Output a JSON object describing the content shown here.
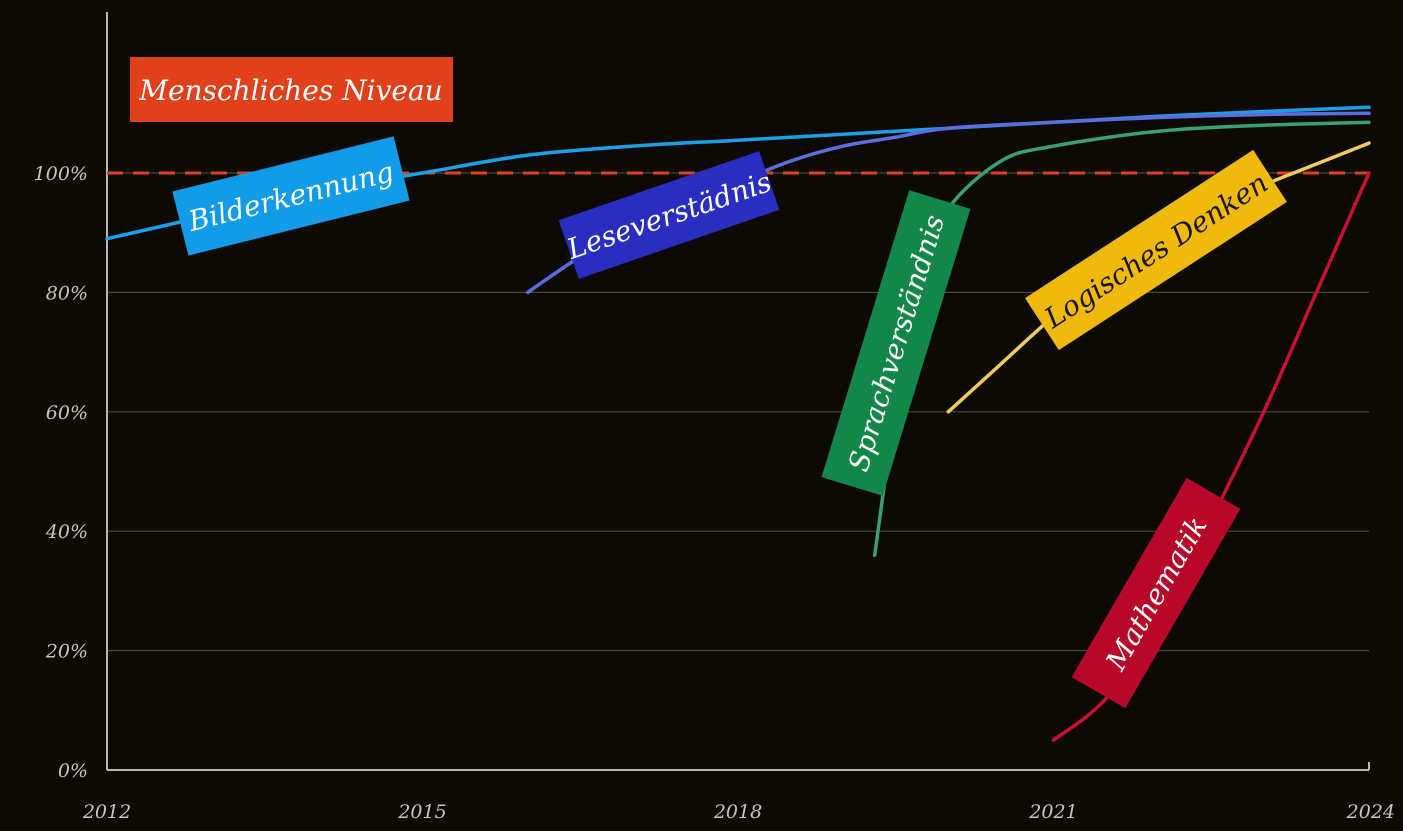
{
  "chart_data": {
    "type": "line",
    "title": "",
    "xlabel": "",
    "ylabel": "",
    "xlim": [
      2012,
      2024
    ],
    "ylim": [
      0,
      110
    ],
    "x_ticks": [
      2012,
      2015,
      2018,
      2021,
      2024
    ],
    "x_tick_labels": [
      "2012",
      "2015",
      "2018",
      "2021",
      "2024"
    ],
    "y_ticks": [
      0,
      20,
      40,
      60,
      80,
      100
    ],
    "y_tick_labels": [
      "0%",
      "20%",
      "40%",
      "60%",
      "80%",
      "100%"
    ],
    "grid": "horizontal",
    "background_color": "#0d0a06",
    "reference_line": {
      "y": 100,
      "label": "Menschliches Niveau",
      "color": "#e0401a",
      "style": "dashed"
    },
    "series": [
      {
        "name": "Bilderkennung",
        "color": "#1aa0e8",
        "label_color": "#129be6",
        "x": [
          2012,
          2013,
          2014,
          2015,
          2016,
          2017,
          2018,
          2019,
          2020,
          2021,
          2022,
          2023,
          2024
        ],
        "y": [
          89,
          93,
          97,
          100,
          103,
          104.5,
          105.5,
          106.5,
          107.5,
          108.5,
          109.5,
          110.3,
          111
        ]
      },
      {
        "name": "Leseverstädnis",
        "color": "#5a6ee0",
        "label_color": "#2a2ec0",
        "x": [
          2016,
          2016.5,
          2017,
          2017.5,
          2018,
          2018.5,
          2019,
          2019.5,
          2020,
          2021,
          2022,
          2023,
          2024
        ],
        "y": [
          80,
          86,
          91,
          95,
          98.5,
          102,
          104.5,
          106,
          107.5,
          108.5,
          109.3,
          109.8,
          110
        ]
      },
      {
        "name": "Sprachverständnis",
        "color": "#3aa070",
        "label_color": "#13874a",
        "x": [
          2019.3,
          2019.5,
          2019.8,
          2020,
          2020.5,
          2021,
          2022,
          2023,
          2024
        ],
        "y": [
          36,
          60,
          84,
          94,
          102,
          104.5,
          107,
          108,
          108.5
        ]
      },
      {
        "name": "Logisches Denken",
        "color": "#f2cc5a",
        "label_color": "#efb90e",
        "x": [
          2020,
          2020.5,
          2021,
          2021.5,
          2022,
          2022.5,
          2023,
          2023.5,
          2024
        ],
        "y": [
          60,
          68,
          76,
          83,
          89,
          94,
          98,
          101.5,
          105
        ]
      },
      {
        "name": "Mathematik",
        "color": "#c81030",
        "label_color": "#b8082a",
        "x": [
          2021,
          2021.5,
          2022,
          2022.5,
          2023,
          2023.5,
          2024
        ],
        "y": [
          5,
          12,
          25,
          42,
          60,
          80,
          100
        ]
      }
    ]
  }
}
